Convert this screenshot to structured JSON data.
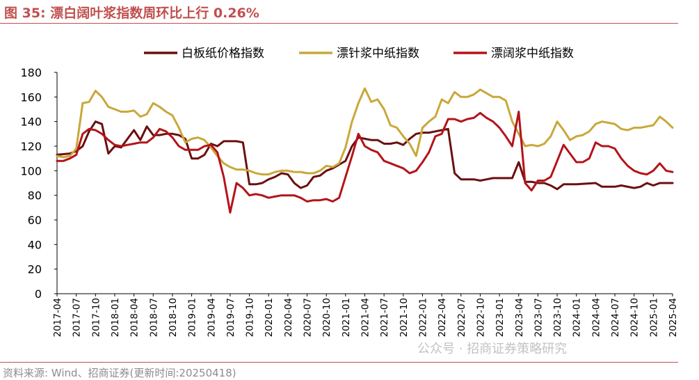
{
  "header": {
    "title": "图 35:  漂白阔叶浆指数周环比上行 0.26%"
  },
  "footer": {
    "source": "资料来源:  Wind、招商证券(更新时间:20250418)",
    "watermark": "公众号 · 招商证券策略研究"
  },
  "chart_data": {
    "type": "line",
    "title": "图 35:  漂白阔叶浆指数周环比上行 0.26%",
    "xlabel": "",
    "ylabel": "",
    "ylim": [
      0,
      180
    ],
    "yticks": [
      0,
      20,
      40,
      60,
      80,
      100,
      120,
      140,
      160,
      180
    ],
    "xlim": [
      "2017-04",
      "2025-04"
    ],
    "xticks": [
      "2017-04",
      "2017-07",
      "2017-10",
      "2018-01",
      "2018-04",
      "2018-07",
      "2018-10",
      "2019-01",
      "2019-04",
      "2019-07",
      "2019-10",
      "2020-01",
      "2020-04",
      "2020-07",
      "2020-10",
      "2021-01",
      "2021-04",
      "2021-07",
      "2021-10",
      "2022-01",
      "2022-04",
      "2022-07",
      "2022-10",
      "2023-01",
      "2023-04",
      "2023-07",
      "2023-10",
      "2024-01",
      "2024-04",
      "2024-07",
      "2024-10",
      "2025-01",
      "2025-04"
    ],
    "grid": false,
    "legend": "top",
    "series": [
      {
        "name": "白板纸价格指数",
        "color": "#6b0f0f",
        "points": [
          [
            "2017-04",
            113
          ],
          [
            "2017-06",
            114
          ],
          [
            "2017-07",
            116
          ],
          [
            "2017-08",
            120
          ],
          [
            "2017-09",
            132
          ],
          [
            "2017-10",
            140
          ],
          [
            "2017-11",
            138
          ],
          [
            "2017-12",
            114
          ],
          [
            "2018-01",
            120
          ],
          [
            "2018-02",
            119
          ],
          [
            "2018-03",
            126
          ],
          [
            "2018-04",
            133
          ],
          [
            "2018-05",
            125
          ],
          [
            "2018-06",
            136
          ],
          [
            "2018-07",
            129
          ],
          [
            "2018-08",
            129
          ],
          [
            "2018-09",
            130
          ],
          [
            "2018-10",
            130
          ],
          [
            "2018-11",
            129
          ],
          [
            "2018-12",
            126
          ],
          [
            "2019-01",
            110
          ],
          [
            "2019-02",
            110
          ],
          [
            "2019-03",
            113
          ],
          [
            "2019-04",
            122
          ],
          [
            "2019-05",
            120
          ],
          [
            "2019-06",
            124
          ],
          [
            "2019-07",
            124
          ],
          [
            "2019-08",
            124
          ],
          [
            "2019-09",
            123
          ],
          [
            "2019-10",
            89
          ],
          [
            "2019-11",
            89
          ],
          [
            "2019-12",
            90
          ],
          [
            "2020-01",
            93
          ],
          [
            "2020-02",
            95
          ],
          [
            "2020-03",
            98
          ],
          [
            "2020-04",
            97
          ],
          [
            "2020-05",
            90
          ],
          [
            "2020-06",
            86
          ],
          [
            "2020-07",
            88
          ],
          [
            "2020-08",
            95
          ],
          [
            "2020-09",
            96
          ],
          [
            "2020-10",
            100
          ],
          [
            "2020-11",
            102
          ],
          [
            "2020-12",
            105
          ],
          [
            "2021-01",
            108
          ],
          [
            "2021-02",
            120
          ],
          [
            "2021-03",
            127
          ],
          [
            "2021-04",
            126
          ],
          [
            "2021-05",
            125
          ],
          [
            "2021-06",
            125
          ],
          [
            "2021-07",
            122
          ],
          [
            "2021-08",
            122
          ],
          [
            "2021-09",
            123
          ],
          [
            "2021-10",
            121
          ],
          [
            "2021-11",
            126
          ],
          [
            "2021-12",
            130
          ],
          [
            "2022-01",
            131
          ],
          [
            "2022-02",
            131
          ],
          [
            "2022-03",
            132
          ],
          [
            "2022-04",
            133
          ],
          [
            "2022-05",
            134
          ],
          [
            "2022-06",
            98
          ],
          [
            "2022-07",
            93
          ],
          [
            "2022-08",
            93
          ],
          [
            "2022-09",
            93
          ],
          [
            "2022-10",
            92
          ],
          [
            "2022-11",
            93
          ],
          [
            "2022-12",
            94
          ],
          [
            "2023-01",
            94
          ],
          [
            "2023-02",
            94
          ],
          [
            "2023-03",
            94
          ],
          [
            "2023-04",
            107
          ],
          [
            "2023-05",
            91
          ],
          [
            "2023-06",
            91
          ],
          [
            "2023-07",
            90
          ],
          [
            "2023-08",
            90
          ],
          [
            "2023-09",
            88
          ],
          [
            "2023-10",
            85
          ],
          [
            "2023-11",
            89
          ],
          [
            "2024-01",
            89
          ],
          [
            "2024-04",
            90
          ],
          [
            "2024-05",
            87
          ],
          [
            "2024-07",
            87
          ],
          [
            "2024-08",
            88
          ],
          [
            "2024-10",
            86
          ],
          [
            "2024-11",
            87
          ],
          [
            "2024-12",
            90
          ],
          [
            "2025-01",
            88
          ],
          [
            "2025-02",
            90
          ],
          [
            "2025-04",
            90
          ]
        ]
      },
      {
        "name": "漂针浆中纸指数",
        "color": "#c9a83a",
        "points": [
          [
            "2017-04",
            112
          ],
          [
            "2017-05",
            111
          ],
          [
            "2017-06",
            112
          ],
          [
            "2017-07",
            118
          ],
          [
            "2017-08",
            155
          ],
          [
            "2017-09",
            156
          ],
          [
            "2017-10",
            165
          ],
          [
            "2017-11",
            160
          ],
          [
            "2017-12",
            152
          ],
          [
            "2018-01",
            150
          ],
          [
            "2018-02",
            148
          ],
          [
            "2018-03",
            148
          ],
          [
            "2018-04",
            149
          ],
          [
            "2018-05",
            144
          ],
          [
            "2018-06",
            146
          ],
          [
            "2018-07",
            155
          ],
          [
            "2018-08",
            152
          ],
          [
            "2018-09",
            148
          ],
          [
            "2018-10",
            145
          ],
          [
            "2018-11",
            135
          ],
          [
            "2018-12",
            123
          ],
          [
            "2019-01",
            126
          ],
          [
            "2019-02",
            127
          ],
          [
            "2019-03",
            125
          ],
          [
            "2019-04",
            119
          ],
          [
            "2019-05",
            112
          ],
          [
            "2019-06",
            106
          ],
          [
            "2019-07",
            103
          ],
          [
            "2019-08",
            101
          ],
          [
            "2019-09",
            101
          ],
          [
            "2019-10",
            100
          ],
          [
            "2019-11",
            98
          ],
          [
            "2019-12",
            97
          ],
          [
            "2020-01",
            97
          ],
          [
            "2020-02",
            99
          ],
          [
            "2020-03",
            100
          ],
          [
            "2020-04",
            100
          ],
          [
            "2020-05",
            99
          ],
          [
            "2020-06",
            99
          ],
          [
            "2020-07",
            98
          ],
          [
            "2020-08",
            98
          ],
          [
            "2020-09",
            100
          ],
          [
            "2020-10",
            104
          ],
          [
            "2020-11",
            103
          ],
          [
            "2020-12",
            106
          ],
          [
            "2021-01",
            119
          ],
          [
            "2021-02",
            140
          ],
          [
            "2021-03",
            155
          ],
          [
            "2021-04",
            167
          ],
          [
            "2021-05",
            156
          ],
          [
            "2021-06",
            158
          ],
          [
            "2021-07",
            150
          ],
          [
            "2021-08",
            137
          ],
          [
            "2021-09",
            135
          ],
          [
            "2021-10",
            128
          ],
          [
            "2021-11",
            122
          ],
          [
            "2021-12",
            112
          ],
          [
            "2022-01",
            135
          ],
          [
            "2022-02",
            140
          ],
          [
            "2022-03",
            144
          ],
          [
            "2022-04",
            158
          ],
          [
            "2022-05",
            155
          ],
          [
            "2022-06",
            164
          ],
          [
            "2022-07",
            160
          ],
          [
            "2022-08",
            160
          ],
          [
            "2022-09",
            162
          ],
          [
            "2022-10",
            166
          ],
          [
            "2022-11",
            163
          ],
          [
            "2022-12",
            160
          ],
          [
            "2023-01",
            160
          ],
          [
            "2023-02",
            157
          ],
          [
            "2023-03",
            140
          ],
          [
            "2023-04",
            130
          ],
          [
            "2023-05",
            120
          ],
          [
            "2023-06",
            121
          ],
          [
            "2023-07",
            120
          ],
          [
            "2023-08",
            122
          ],
          [
            "2023-09",
            128
          ],
          [
            "2023-10",
            140
          ],
          [
            "2023-11",
            133
          ],
          [
            "2023-12",
            125
          ],
          [
            "2024-01",
            128
          ],
          [
            "2024-02",
            129
          ],
          [
            "2024-03",
            132
          ],
          [
            "2024-04",
            138
          ],
          [
            "2024-05",
            140
          ],
          [
            "2024-06",
            139
          ],
          [
            "2024-07",
            138
          ],
          [
            "2024-08",
            134
          ],
          [
            "2024-09",
            133
          ],
          [
            "2024-10",
            135
          ],
          [
            "2024-11",
            135
          ],
          [
            "2024-12",
            136
          ],
          [
            "2025-01",
            137
          ],
          [
            "2025-02",
            144
          ],
          [
            "2025-03",
            140
          ],
          [
            "2025-04",
            135
          ]
        ]
      },
      {
        "name": "漂阔浆中纸指数",
        "color": "#b3141a",
        "points": [
          [
            "2017-04",
            108
          ],
          [
            "2017-05",
            108
          ],
          [
            "2017-06",
            110
          ],
          [
            "2017-07",
            113
          ],
          [
            "2017-08",
            130
          ],
          [
            "2017-09",
            134
          ],
          [
            "2017-10",
            133
          ],
          [
            "2017-11",
            130
          ],
          [
            "2017-12",
            125
          ],
          [
            "2018-01",
            121
          ],
          [
            "2018-02",
            120
          ],
          [
            "2018-03",
            121
          ],
          [
            "2018-04",
            122
          ],
          [
            "2018-05",
            123
          ],
          [
            "2018-06",
            123
          ],
          [
            "2018-07",
            127
          ],
          [
            "2018-08",
            134
          ],
          [
            "2018-09",
            132
          ],
          [
            "2018-10",
            127
          ],
          [
            "2018-11",
            120
          ],
          [
            "2018-12",
            117
          ],
          [
            "2019-01",
            117
          ],
          [
            "2019-02",
            117
          ],
          [
            "2019-03",
            120
          ],
          [
            "2019-04",
            121
          ],
          [
            "2019-05",
            115
          ],
          [
            "2019-06",
            95
          ],
          [
            "2019-07",
            66
          ],
          [
            "2019-08",
            90
          ],
          [
            "2019-09",
            86
          ],
          [
            "2019-10",
            80
          ],
          [
            "2019-11",
            81
          ],
          [
            "2019-12",
            80
          ],
          [
            "2020-01",
            78
          ],
          [
            "2020-02",
            79
          ],
          [
            "2020-03",
            80
          ],
          [
            "2020-04",
            80
          ],
          [
            "2020-05",
            80
          ],
          [
            "2020-06",
            78
          ],
          [
            "2020-07",
            75
          ],
          [
            "2020-08",
            76
          ],
          [
            "2020-09",
            76
          ],
          [
            "2020-10",
            77
          ],
          [
            "2020-11",
            75
          ],
          [
            "2020-12",
            78
          ],
          [
            "2021-01",
            95
          ],
          [
            "2021-02",
            112
          ],
          [
            "2021-03",
            130
          ],
          [
            "2021-04",
            120
          ],
          [
            "2021-05",
            117
          ],
          [
            "2021-06",
            115
          ],
          [
            "2021-07",
            108
          ],
          [
            "2021-08",
            106
          ],
          [
            "2021-09",
            104
          ],
          [
            "2021-10",
            102
          ],
          [
            "2021-11",
            98
          ],
          [
            "2021-12",
            100
          ],
          [
            "2022-01",
            107
          ],
          [
            "2022-02",
            115
          ],
          [
            "2022-03",
            128
          ],
          [
            "2022-04",
            130
          ],
          [
            "2022-05",
            142
          ],
          [
            "2022-06",
            142
          ],
          [
            "2022-07",
            140
          ],
          [
            "2022-08",
            142
          ],
          [
            "2022-09",
            143
          ],
          [
            "2022-10",
            147
          ],
          [
            "2022-11",
            143
          ],
          [
            "2022-12",
            140
          ],
          [
            "2023-01",
            135
          ],
          [
            "2023-02",
            128
          ],
          [
            "2023-03",
            120
          ],
          [
            "2023-04",
            148
          ],
          [
            "2023-05",
            90
          ],
          [
            "2023-06",
            84
          ],
          [
            "2023-07",
            92
          ],
          [
            "2023-08",
            92
          ],
          [
            "2023-09",
            95
          ],
          [
            "2023-10",
            108
          ],
          [
            "2023-11",
            121
          ],
          [
            "2023-12",
            114
          ],
          [
            "2024-01",
            107
          ],
          [
            "2024-02",
            107
          ],
          [
            "2024-03",
            110
          ],
          [
            "2024-04",
            123
          ],
          [
            "2024-05",
            120
          ],
          [
            "2024-06",
            120
          ],
          [
            "2024-07",
            118
          ],
          [
            "2024-08",
            110
          ],
          [
            "2024-09",
            104
          ],
          [
            "2024-10",
            100
          ],
          [
            "2024-11",
            98
          ],
          [
            "2024-12",
            97
          ],
          [
            "2025-01",
            100
          ],
          [
            "2025-02",
            106
          ],
          [
            "2025-03",
            100
          ],
          [
            "2025-04",
            99
          ]
        ]
      }
    ]
  }
}
